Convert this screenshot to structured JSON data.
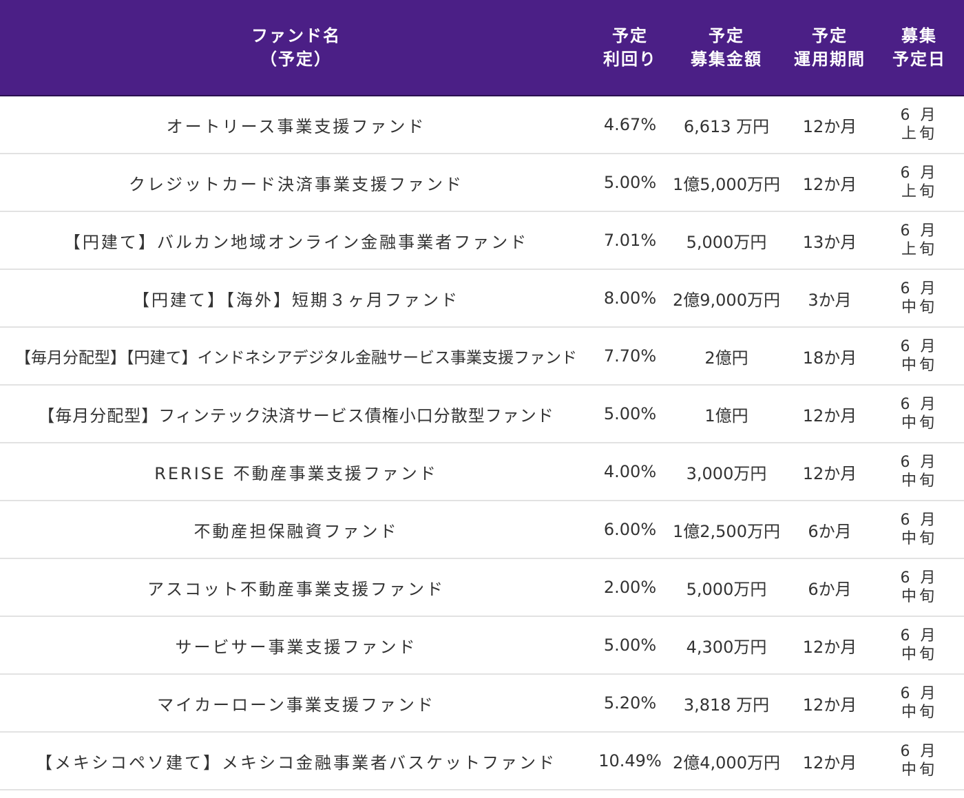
{
  "header": {
    "name_line1": "ファンド名",
    "name_line2": "（予定）",
    "yield_line1": "予定",
    "yield_line2": "利回り",
    "amount_line1": "予定",
    "amount_line2": "募集金額",
    "period_line1": "予定",
    "period_line2": "運用期間",
    "date_line1": "募集",
    "date_line2": "予定日"
  },
  "rows": [
    {
      "name": "オートリース事業支援ファンド",
      "yield": "4.67%",
      "amount": "6,613 万円",
      "period": "12か月",
      "date_month": "6 月",
      "date_part": "上旬"
    },
    {
      "name": "クレジットカード決済事業支援ファンド",
      "yield": "5.00%",
      "amount": "1億5,000万円",
      "period": "12か月",
      "date_month": "6 月",
      "date_part": "上旬"
    },
    {
      "name": "【円建て】バルカン地域オンライン金融事業者ファンド",
      "yield": "7.01%",
      "amount": "5,000万円",
      "period": "13か月",
      "date_month": "6 月",
      "date_part": "上旬"
    },
    {
      "name": "【円建て】【海外】短期３ヶ月ファンド",
      "yield": "8.00%",
      "amount": "2億9,000万円",
      "period": "3か月",
      "date_month": "6 月",
      "date_part": "中旬"
    },
    {
      "name": "【毎月分配型】【円建て】インドネシアデジタル金融サービス事業支援ファンド",
      "yield": "7.70%",
      "amount": "2億円",
      "period": "18か月",
      "date_month": "6 月",
      "date_part": "中旬"
    },
    {
      "name": "【毎月分配型】フィンテック決済サービス債権小口分散型ファンド",
      "yield": "5.00%",
      "amount": "1億円",
      "period": "12か月",
      "date_month": "6 月",
      "date_part": "中旬"
    },
    {
      "name": "RERISE 不動産事業支援ファンド",
      "yield": "4.00%",
      "amount": "3,000万円",
      "period": "12か月",
      "date_month": "6 月",
      "date_part": "中旬"
    },
    {
      "name": "不動産担保融資ファンド",
      "yield": "6.00%",
      "amount": "1億2,500万円",
      "period": "6か月",
      "date_month": "6 月",
      "date_part": "中旬"
    },
    {
      "name": "アスコット不動産事業支援ファンド",
      "yield": "2.00%",
      "amount": "5,000万円",
      "period": "6か月",
      "date_month": "6 月",
      "date_part": "中旬"
    },
    {
      "name": "サービサー事業支援ファンド",
      "yield": "5.00%",
      "amount": "4,300万円",
      "period": "12か月",
      "date_month": "6 月",
      "date_part": "中旬"
    },
    {
      "name": "マイカーローン事業支援ファンド",
      "yield": "5.20%",
      "amount": "3,818 万円",
      "period": "12か月",
      "date_month": "6 月",
      "date_part": "中旬"
    },
    {
      "name": "【メキシコペソ建て】メキシコ金融事業者バスケットファンド",
      "yield": "10.49%",
      "amount": "2億4,000万円",
      "period": "12か月",
      "date_month": "6 月",
      "date_part": "中旬"
    }
  ]
}
